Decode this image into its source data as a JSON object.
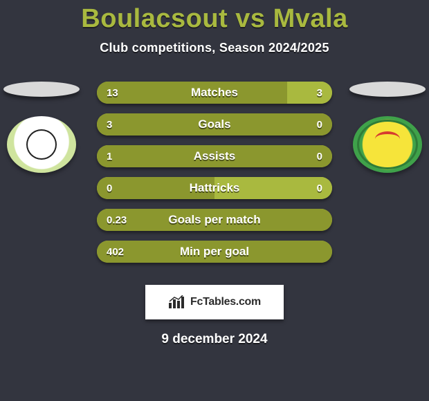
{
  "background_color": "#33353f",
  "accent_color": "#a9b93f",
  "title": "Boulacsout vs Mvala",
  "title_fontsize": 38,
  "title_color": "#a9b93f",
  "subtitle": "Club competitions, Season 2024/2025",
  "subtitle_fontsize": 18,
  "subtitle_color": "#ffffff",
  "crests": {
    "left": {
      "name": "team-left-crest",
      "outer_color": "#6fa13a",
      "inner_color": "#ffffff"
    },
    "right": {
      "name": "team-right-crest",
      "outer_color": "#3fa24a",
      "inner_color": "#f6e43a"
    },
    "shadow_color": "#d9d9d9"
  },
  "bars": {
    "height": 32,
    "radius": 18,
    "label_fontsize": 17,
    "value_fontsize": 15,
    "base_color": "#a9b93f",
    "dominant_color": "#8b972e",
    "items": [
      {
        "label": "Matches",
        "left": "13",
        "right": "3",
        "left_pct": 81,
        "right_pct": 19
      },
      {
        "label": "Goals",
        "left": "3",
        "right": "0",
        "left_pct": 100,
        "right_pct": 0
      },
      {
        "label": "Assists",
        "left": "1",
        "right": "0",
        "left_pct": 100,
        "right_pct": 0
      },
      {
        "label": "Hattricks",
        "left": "0",
        "right": "0",
        "left_pct": 50,
        "right_pct": 50
      },
      {
        "label": "Goals per match",
        "left": "0.23",
        "right": "",
        "left_pct": 100,
        "right_pct": 0
      },
      {
        "label": "Min per goal",
        "left": "402",
        "right": "",
        "left_pct": 100,
        "right_pct": 0
      }
    ]
  },
  "brand": {
    "text": "FcTables.com",
    "text_color": "#2b2b2b",
    "bg_color": "#ffffff"
  },
  "date": "9 december 2024",
  "date_fontsize": 19
}
